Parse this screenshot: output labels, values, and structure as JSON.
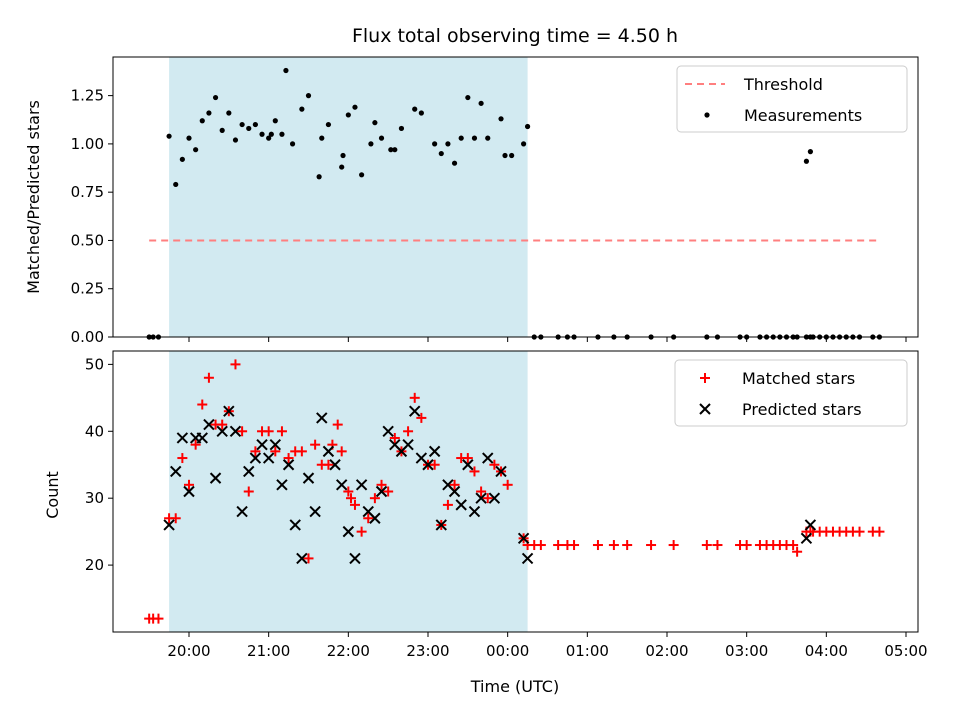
{
  "chart_data": [
    {
      "type": "scatter",
      "title": "Flux total observing time = 4.50 h",
      "ylabel": "Matched/Predicted stars",
      "xlabel": "",
      "xlim": [
        "19:00",
        "05:00"
      ],
      "ylim": [
        0,
        1.45
      ],
      "yticks": [
        0,
        0.25,
        0.5,
        0.75,
        1.0,
        1.25
      ],
      "ytick_labels": [
        "0.00",
        "0.25",
        "0.50",
        "0.75",
        "1.00",
        "1.25"
      ],
      "xticks": [
        "20:00",
        "21:00",
        "22:00",
        "23:00",
        "00:00",
        "01:00",
        "02:00",
        "03:00",
        "04:00",
        "05:00"
      ],
      "observing_window": {
        "start": "19:45",
        "end": "00:15",
        "color": "#add8e6"
      },
      "threshold": {
        "name": "Threshold",
        "value": 0.5,
        "x_start": "19:30",
        "x_end": "04:40",
        "color": "#ff7f7f"
      },
      "legend": {
        "position": "upper right",
        "entries": [
          "Threshold",
          "Measurements"
        ]
      },
      "series": [
        {
          "name": "Measurements",
          "color": "#000000",
          "marker": "dot",
          "points": [
            [
              "19:30",
              0
            ],
            [
              "19:33",
              0
            ],
            [
              "19:37",
              0
            ],
            [
              "19:45",
              1.04
            ],
            [
              "19:50",
              0.79
            ],
            [
              "19:55",
              0.92
            ],
            [
              "20:00",
              1.03
            ],
            [
              "20:05",
              0.97
            ],
            [
              "20:10",
              1.12
            ],
            [
              "20:15",
              1.16
            ],
            [
              "20:20",
              1.24
            ],
            [
              "20:25",
              1.07
            ],
            [
              "20:30",
              1.16
            ],
            [
              "20:35",
              1.02
            ],
            [
              "20:40",
              1.1
            ],
            [
              "20:45",
              1.08
            ],
            [
              "20:50",
              1.1
            ],
            [
              "20:55",
              1.05
            ],
            [
              "21:00",
              1.03
            ],
            [
              "21:02",
              1.05
            ],
            [
              "21:05",
              1.12
            ],
            [
              "21:10",
              1.05
            ],
            [
              "21:13",
              1.38
            ],
            [
              "21:18",
              1.0
            ],
            [
              "21:25",
              1.18
            ],
            [
              "21:30",
              1.25
            ],
            [
              "21:38",
              0.83
            ],
            [
              "21:40",
              1.03
            ],
            [
              "21:45",
              1.1
            ],
            [
              "21:55",
              0.88
            ],
            [
              "21:56",
              0.94
            ],
            [
              "22:00",
              1.15
            ],
            [
              "22:05",
              1.19
            ],
            [
              "22:10",
              0.84
            ],
            [
              "22:17",
              1.0
            ],
            [
              "22:20",
              1.11
            ],
            [
              "22:25",
              1.03
            ],
            [
              "22:32",
              0.97
            ],
            [
              "22:35",
              0.97
            ],
            [
              "22:40",
              1.08
            ],
            [
              "22:50",
              1.18
            ],
            [
              "22:55",
              1.16
            ],
            [
              "23:05",
              1.0
            ],
            [
              "23:10",
              0.95
            ],
            [
              "23:15",
              1.0
            ],
            [
              "23:20",
              0.9
            ],
            [
              "23:25",
              1.03
            ],
            [
              "23:30",
              1.24
            ],
            [
              "23:35",
              1.03
            ],
            [
              "23:40",
              1.21
            ],
            [
              "23:45",
              1.03
            ],
            [
              "23:55",
              1.13
            ],
            [
              "23:58",
              0.94
            ],
            [
              "00:03",
              0.94
            ],
            [
              "00:12",
              1.0
            ],
            [
              "00:15",
              1.09
            ],
            [
              "00:20",
              0
            ],
            [
              "00:25",
              0
            ],
            [
              "00:38",
              0
            ],
            [
              "00:45",
              0
            ],
            [
              "00:50",
              0
            ],
            [
              "01:08",
              0
            ],
            [
              "01:20",
              0
            ],
            [
              "01:30",
              0
            ],
            [
              "01:48",
              0
            ],
            [
              "02:05",
              0
            ],
            [
              "02:30",
              0
            ],
            [
              "02:38",
              0
            ],
            [
              "02:55",
              0
            ],
            [
              "03:00",
              0
            ],
            [
              "03:10",
              0
            ],
            [
              "03:15",
              0
            ],
            [
              "03:20",
              0
            ],
            [
              "03:25",
              0
            ],
            [
              "03:30",
              0
            ],
            [
              "03:35",
              0
            ],
            [
              "03:38",
              0
            ],
            [
              "03:45",
              0
            ],
            [
              "03:48",
              0
            ],
            [
              "03:50",
              0
            ],
            [
              "03:45",
              0.91
            ],
            [
              "03:48",
              0.96
            ],
            [
              "03:55",
              0
            ],
            [
              "04:00",
              0
            ],
            [
              "04:05",
              0
            ],
            [
              "04:10",
              0
            ],
            [
              "04:15",
              0
            ],
            [
              "04:20",
              0
            ],
            [
              "04:25",
              0
            ],
            [
              "04:35",
              0
            ],
            [
              "04:40",
              0
            ]
          ]
        }
      ]
    },
    {
      "type": "scatter",
      "xlabel": "Time (UTC)",
      "ylabel": "Count",
      "xlim": [
        "19:00",
        "05:00"
      ],
      "ylim": [
        10,
        52
      ],
      "yticks": [
        20,
        30,
        40,
        50
      ],
      "xticks": [
        "20:00",
        "21:00",
        "22:00",
        "23:00",
        "00:00",
        "01:00",
        "02:00",
        "03:00",
        "04:00",
        "05:00"
      ],
      "observing_window": {
        "start": "19:45",
        "end": "00:15",
        "color": "#add8e6"
      },
      "legend": {
        "position": "upper right",
        "entries": [
          "Matched stars",
          "Predicted stars"
        ]
      },
      "series": [
        {
          "name": "Matched stars",
          "color": "#ff0000",
          "marker": "plus",
          "points": [
            [
              "19:30",
              12
            ],
            [
              "19:33",
              12
            ],
            [
              "19:37",
              12
            ],
            [
              "19:45",
              27
            ],
            [
              "19:50",
              27
            ],
            [
              "19:55",
              36
            ],
            [
              "20:00",
              32
            ],
            [
              "20:05",
              38
            ],
            [
              "20:10",
              44
            ],
            [
              "20:15",
              48
            ],
            [
              "20:20",
              41
            ],
            [
              "20:25",
              41
            ],
            [
              "20:30",
              43
            ],
            [
              "20:35",
              50
            ],
            [
              "20:40",
              40
            ],
            [
              "20:45",
              31
            ],
            [
              "20:50",
              37
            ],
            [
              "20:55",
              40
            ],
            [
              "21:00",
              40
            ],
            [
              "21:05",
              37
            ],
            [
              "21:10",
              40
            ],
            [
              "21:15",
              36
            ],
            [
              "21:20",
              37
            ],
            [
              "21:25",
              37
            ],
            [
              "21:30",
              21
            ],
            [
              "21:35",
              38
            ],
            [
              "21:40",
              35
            ],
            [
              "21:45",
              35
            ],
            [
              "21:48",
              38
            ],
            [
              "21:52",
              41
            ],
            [
              "21:55",
              37
            ],
            [
              "22:00",
              31
            ],
            [
              "22:02",
              30
            ],
            [
              "22:05",
              29
            ],
            [
              "22:10",
              25
            ],
            [
              "22:15",
              27
            ],
            [
              "22:20",
              30
            ],
            [
              "22:25",
              32
            ],
            [
              "22:30",
              31
            ],
            [
              "22:35",
              39
            ],
            [
              "22:40",
              37
            ],
            [
              "22:45",
              40
            ],
            [
              "22:50",
              45
            ],
            [
              "22:55",
              42
            ],
            [
              "23:00",
              35
            ],
            [
              "23:05",
              35
            ],
            [
              "23:10",
              26
            ],
            [
              "23:15",
              29
            ],
            [
              "23:20",
              32
            ],
            [
              "23:25",
              36
            ],
            [
              "23:30",
              36
            ],
            [
              "23:35",
              34
            ],
            [
              "23:40",
              31
            ],
            [
              "23:45",
              30
            ],
            [
              "23:50",
              35
            ],
            [
              "23:55",
              34
            ],
            [
              "00:00",
              32
            ],
            [
              "00:12",
              24
            ],
            [
              "00:15",
              23
            ],
            [
              "00:20",
              23
            ],
            [
              "00:25",
              23
            ],
            [
              "00:38",
              23
            ],
            [
              "00:45",
              23
            ],
            [
              "00:50",
              23
            ],
            [
              "01:08",
              23
            ],
            [
              "01:20",
              23
            ],
            [
              "01:30",
              23
            ],
            [
              "01:48",
              23
            ],
            [
              "02:05",
              23
            ],
            [
              "02:30",
              23
            ],
            [
              "02:38",
              23
            ],
            [
              "02:55",
              23
            ],
            [
              "03:00",
              23
            ],
            [
              "03:10",
              23
            ],
            [
              "03:15",
              23
            ],
            [
              "03:20",
              23
            ],
            [
              "03:25",
              23
            ],
            [
              "03:30",
              23
            ],
            [
              "03:35",
              23
            ],
            [
              "03:38",
              22
            ],
            [
              "03:45",
              25
            ],
            [
              "03:48",
              25
            ],
            [
              "03:50",
              25
            ],
            [
              "03:55",
              25
            ],
            [
              "04:00",
              25
            ],
            [
              "04:05",
              25
            ],
            [
              "04:10",
              25
            ],
            [
              "04:15",
              25
            ],
            [
              "04:20",
              25
            ],
            [
              "04:25",
              25
            ],
            [
              "04:35",
              25
            ],
            [
              "04:40",
              25
            ]
          ]
        },
        {
          "name": "Predicted stars",
          "color": "#000000",
          "marker": "x",
          "points": [
            [
              "19:45",
              26
            ],
            [
              "19:50",
              34
            ],
            [
              "19:55",
              39
            ],
            [
              "20:00",
              31
            ],
            [
              "20:05",
              39
            ],
            [
              "20:10",
              39
            ],
            [
              "20:15",
              41
            ],
            [
              "20:20",
              33
            ],
            [
              "20:25",
              40
            ],
            [
              "20:30",
              43
            ],
            [
              "20:35",
              40
            ],
            [
              "20:40",
              28
            ],
            [
              "20:45",
              34
            ],
            [
              "20:50",
              36
            ],
            [
              "20:55",
              38
            ],
            [
              "21:00",
              36
            ],
            [
              "21:05",
              38
            ],
            [
              "21:10",
              32
            ],
            [
              "21:15",
              35
            ],
            [
              "21:20",
              26
            ],
            [
              "21:25",
              21
            ],
            [
              "21:30",
              33
            ],
            [
              "21:35",
              28
            ],
            [
              "21:40",
              42
            ],
            [
              "21:45",
              37
            ],
            [
              "21:50",
              35
            ],
            [
              "21:55",
              32
            ],
            [
              "22:00",
              25
            ],
            [
              "22:05",
              21
            ],
            [
              "22:10",
              32
            ],
            [
              "22:15",
              28
            ],
            [
              "22:20",
              27
            ],
            [
              "22:25",
              31
            ],
            [
              "22:30",
              40
            ],
            [
              "22:35",
              38
            ],
            [
              "22:40",
              37
            ],
            [
              "22:45",
              38
            ],
            [
              "22:50",
              43
            ],
            [
              "22:55",
              36
            ],
            [
              "23:00",
              35
            ],
            [
              "23:05",
              37
            ],
            [
              "23:10",
              26
            ],
            [
              "23:15",
              32
            ],
            [
              "23:20",
              31
            ],
            [
              "23:25",
              29
            ],
            [
              "23:30",
              35
            ],
            [
              "23:35",
              28
            ],
            [
              "23:40",
              30
            ],
            [
              "23:45",
              36
            ],
            [
              "23:50",
              30
            ],
            [
              "23:55",
              34
            ],
            [
              "00:12",
              24
            ],
            [
              "00:15",
              21
            ],
            [
              "03:45",
              24
            ],
            [
              "03:48",
              26
            ]
          ]
        }
      ]
    }
  ]
}
